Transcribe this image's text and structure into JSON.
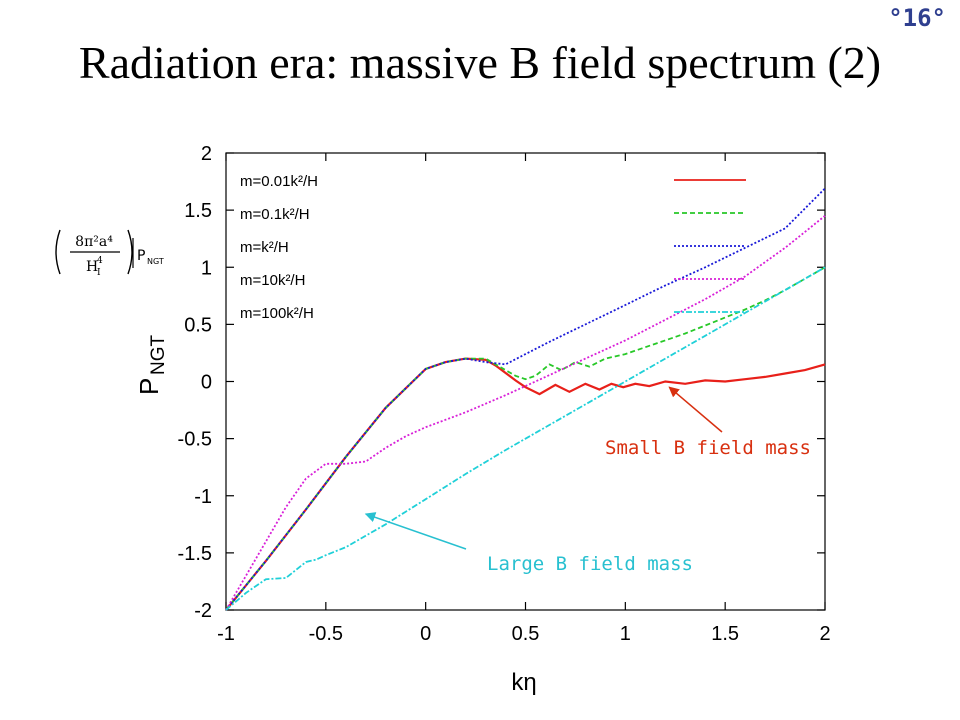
{
  "page": {
    "slide_number": "°16°",
    "title": "Radiation era: massive B field spectrum (2)",
    "prefactor": {
      "numerator": "8π²a⁴",
      "denominator": "H",
      "denominator_sup": "4",
      "denominator_sub": "I",
      "symbol": "P",
      "symbol_sub": "NGT"
    }
  },
  "chart_data": {
    "type": "line",
    "xlabel": "kη",
    "ylabel": "P",
    "ylabel_sub": "NGT",
    "xlim": [
      -1,
      2
    ],
    "ylim": [
      -2,
      2
    ],
    "xticks": [
      "-1",
      "-0.5",
      "0",
      "0.5",
      "1",
      "1.5",
      "2"
    ],
    "yticks": [
      "-2",
      "-1.5",
      "-1",
      "-0.5",
      "0",
      "0.5",
      "1",
      "1.5",
      "2"
    ],
    "grid": false,
    "legend_placement": "top-left",
    "series": [
      {
        "name": "m=0.01k²/H",
        "color": "#e8201a",
        "dash": "solid",
        "x": [
          -1,
          -0.8,
          -0.6,
          -0.4,
          -0.2,
          0,
          0.1,
          0.2,
          0.3,
          0.35,
          0.45,
          0.5,
          0.57,
          0.65,
          0.72,
          0.8,
          0.87,
          0.93,
          0.99,
          1.05,
          1.12,
          1.2,
          1.3,
          1.4,
          1.5,
          1.6,
          1.7,
          1.8,
          1.9,
          2.0
        ],
        "y": [
          -2,
          -1.57,
          -1.12,
          -0.66,
          -0.23,
          0.11,
          0.17,
          0.2,
          0.19,
          0.14,
          0.01,
          -0.05,
          -0.11,
          -0.03,
          -0.09,
          -0.02,
          -0.07,
          -0.02,
          -0.05,
          -0.02,
          -0.04,
          0.0,
          -0.02,
          0.01,
          0.0,
          0.02,
          0.04,
          0.07,
          0.1,
          0.15
        ]
      },
      {
        "name": "m=0.1k²/H",
        "color": "#28c828",
        "dash": "dashed",
        "x": [
          -1,
          -0.8,
          -0.6,
          -0.4,
          -0.2,
          0,
          0.1,
          0.2,
          0.3,
          0.35,
          0.45,
          0.5,
          0.55,
          0.62,
          0.68,
          0.75,
          0.82,
          0.9,
          1.0,
          1.1,
          1.2,
          1.3,
          1.4,
          1.5,
          1.6,
          1.7,
          1.8,
          1.9,
          2.0
        ],
        "y": [
          -2,
          -1.57,
          -1.12,
          -0.66,
          -0.23,
          0.11,
          0.17,
          0.2,
          0.2,
          0.15,
          0.05,
          0.02,
          0.05,
          0.15,
          0.1,
          0.17,
          0.13,
          0.2,
          0.24,
          0.3,
          0.36,
          0.42,
          0.49,
          0.56,
          0.63,
          0.71,
          0.8,
          0.9,
          1.0
        ]
      },
      {
        "name": "m=k²/H",
        "color": "#1a1ad8",
        "dash": "dotted",
        "x": [
          -1,
          -0.8,
          -0.6,
          -0.4,
          -0.2,
          0,
          0.1,
          0.2,
          0.3,
          0.4,
          0.5,
          0.6,
          0.8,
          1.0,
          1.2,
          1.4,
          1.6,
          1.8,
          2.0
        ],
        "y": [
          -2,
          -1.57,
          -1.12,
          -0.66,
          -0.23,
          0.11,
          0.17,
          0.2,
          0.17,
          0.15,
          0.24,
          0.33,
          0.5,
          0.67,
          0.84,
          1.0,
          1.17,
          1.34,
          1.69
        ]
      },
      {
        "name": "m=10k²/H",
        "color": "#d820d8",
        "dash": "dotted",
        "x": [
          -1,
          -0.9,
          -0.8,
          -0.7,
          -0.6,
          -0.5,
          -0.4,
          -0.3,
          -0.2,
          -0.1,
          0,
          0.2,
          0.4,
          0.6,
          0.8,
          1.0,
          1.2,
          1.4,
          1.6,
          1.8,
          2.0
        ],
        "y": [
          -2,
          -1.7,
          -1.4,
          -1.1,
          -0.85,
          -0.72,
          -0.72,
          -0.7,
          -0.58,
          -0.48,
          -0.4,
          -0.27,
          -0.12,
          0.04,
          0.2,
          0.36,
          0.54,
          0.72,
          0.92,
          1.17,
          1.45
        ]
      },
      {
        "name": "m=100k²/H",
        "color": "#20d0d8",
        "dash": "dashdot",
        "x": [
          -1,
          -0.9,
          -0.8,
          -0.7,
          -0.65,
          -0.6,
          -0.55,
          -0.5,
          -0.4,
          -0.3,
          -0.2,
          -0.1,
          0,
          0.2,
          0.4,
          0.6,
          0.8,
          1.0,
          1.2,
          1.4,
          1.6,
          1.8,
          2.0
        ],
        "y": [
          -2,
          -1.85,
          -1.73,
          -1.72,
          -1.65,
          -1.58,
          -1.56,
          -1.52,
          -1.45,
          -1.35,
          -1.25,
          -1.14,
          -1.03,
          -0.81,
          -0.6,
          -0.4,
          -0.2,
          0.0,
          0.2,
          0.4,
          0.6,
          0.8,
          1.0
        ]
      }
    ],
    "annotations": [
      {
        "text": "Small B field mass",
        "color": "#d83010",
        "arrow_to": [
          1.22,
          -0.05
        ]
      },
      {
        "text": "Large B field mass",
        "color": "#28c0d0",
        "arrow_to": [
          -0.3,
          -1.16
        ]
      }
    ]
  }
}
